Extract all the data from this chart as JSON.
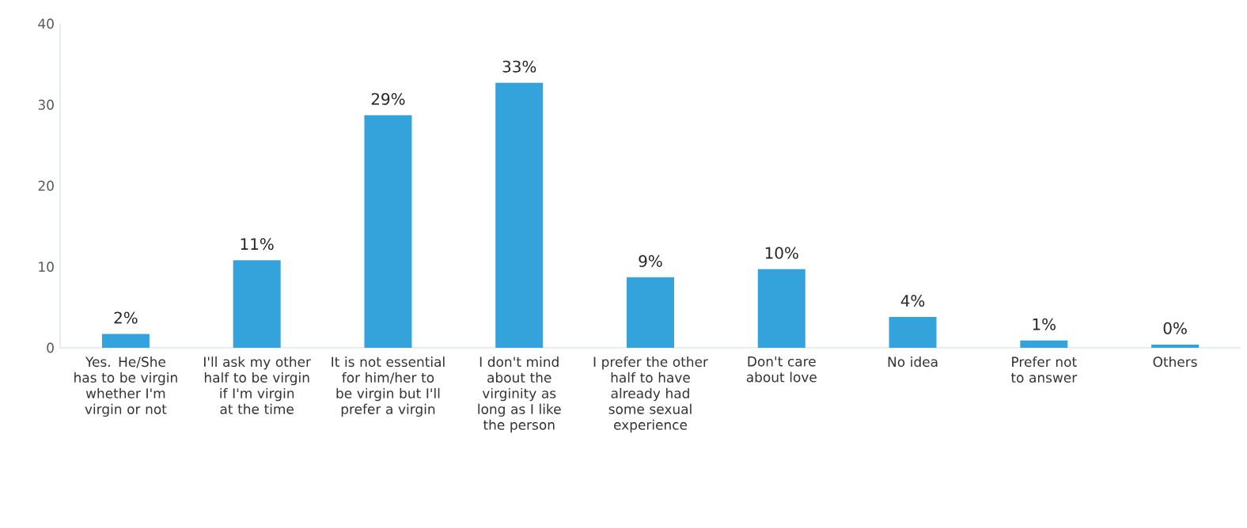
{
  "chart_data": {
    "type": "bar",
    "categories": [
      "Yes. He/She has to be virgin whether I'm virgin or not",
      "I'll ask my other half to be virgin if I'm virgin at the time",
      "It is not essential for him/her to be virgin but I'll prefer a virgin",
      "I don't mind about the virginity as long as I like the person",
      "I prefer the other half to have already had some sexual experience",
      "Don't care about love",
      "No idea",
      "Prefer not to answer",
      "Others"
    ],
    "values": [
      1.7,
      10.8,
      28.7,
      32.7,
      8.7,
      9.7,
      3.8,
      0.9,
      0.4
    ],
    "value_labels": [
      "2%",
      "11%",
      "29%",
      "33%",
      "9%",
      "10%",
      "4%",
      "1%",
      "0%"
    ],
    "color": "#35a3db",
    "ylim": [
      0,
      40
    ],
    "yticks": [
      0,
      10,
      20,
      30,
      40
    ],
    "grid": false
  }
}
